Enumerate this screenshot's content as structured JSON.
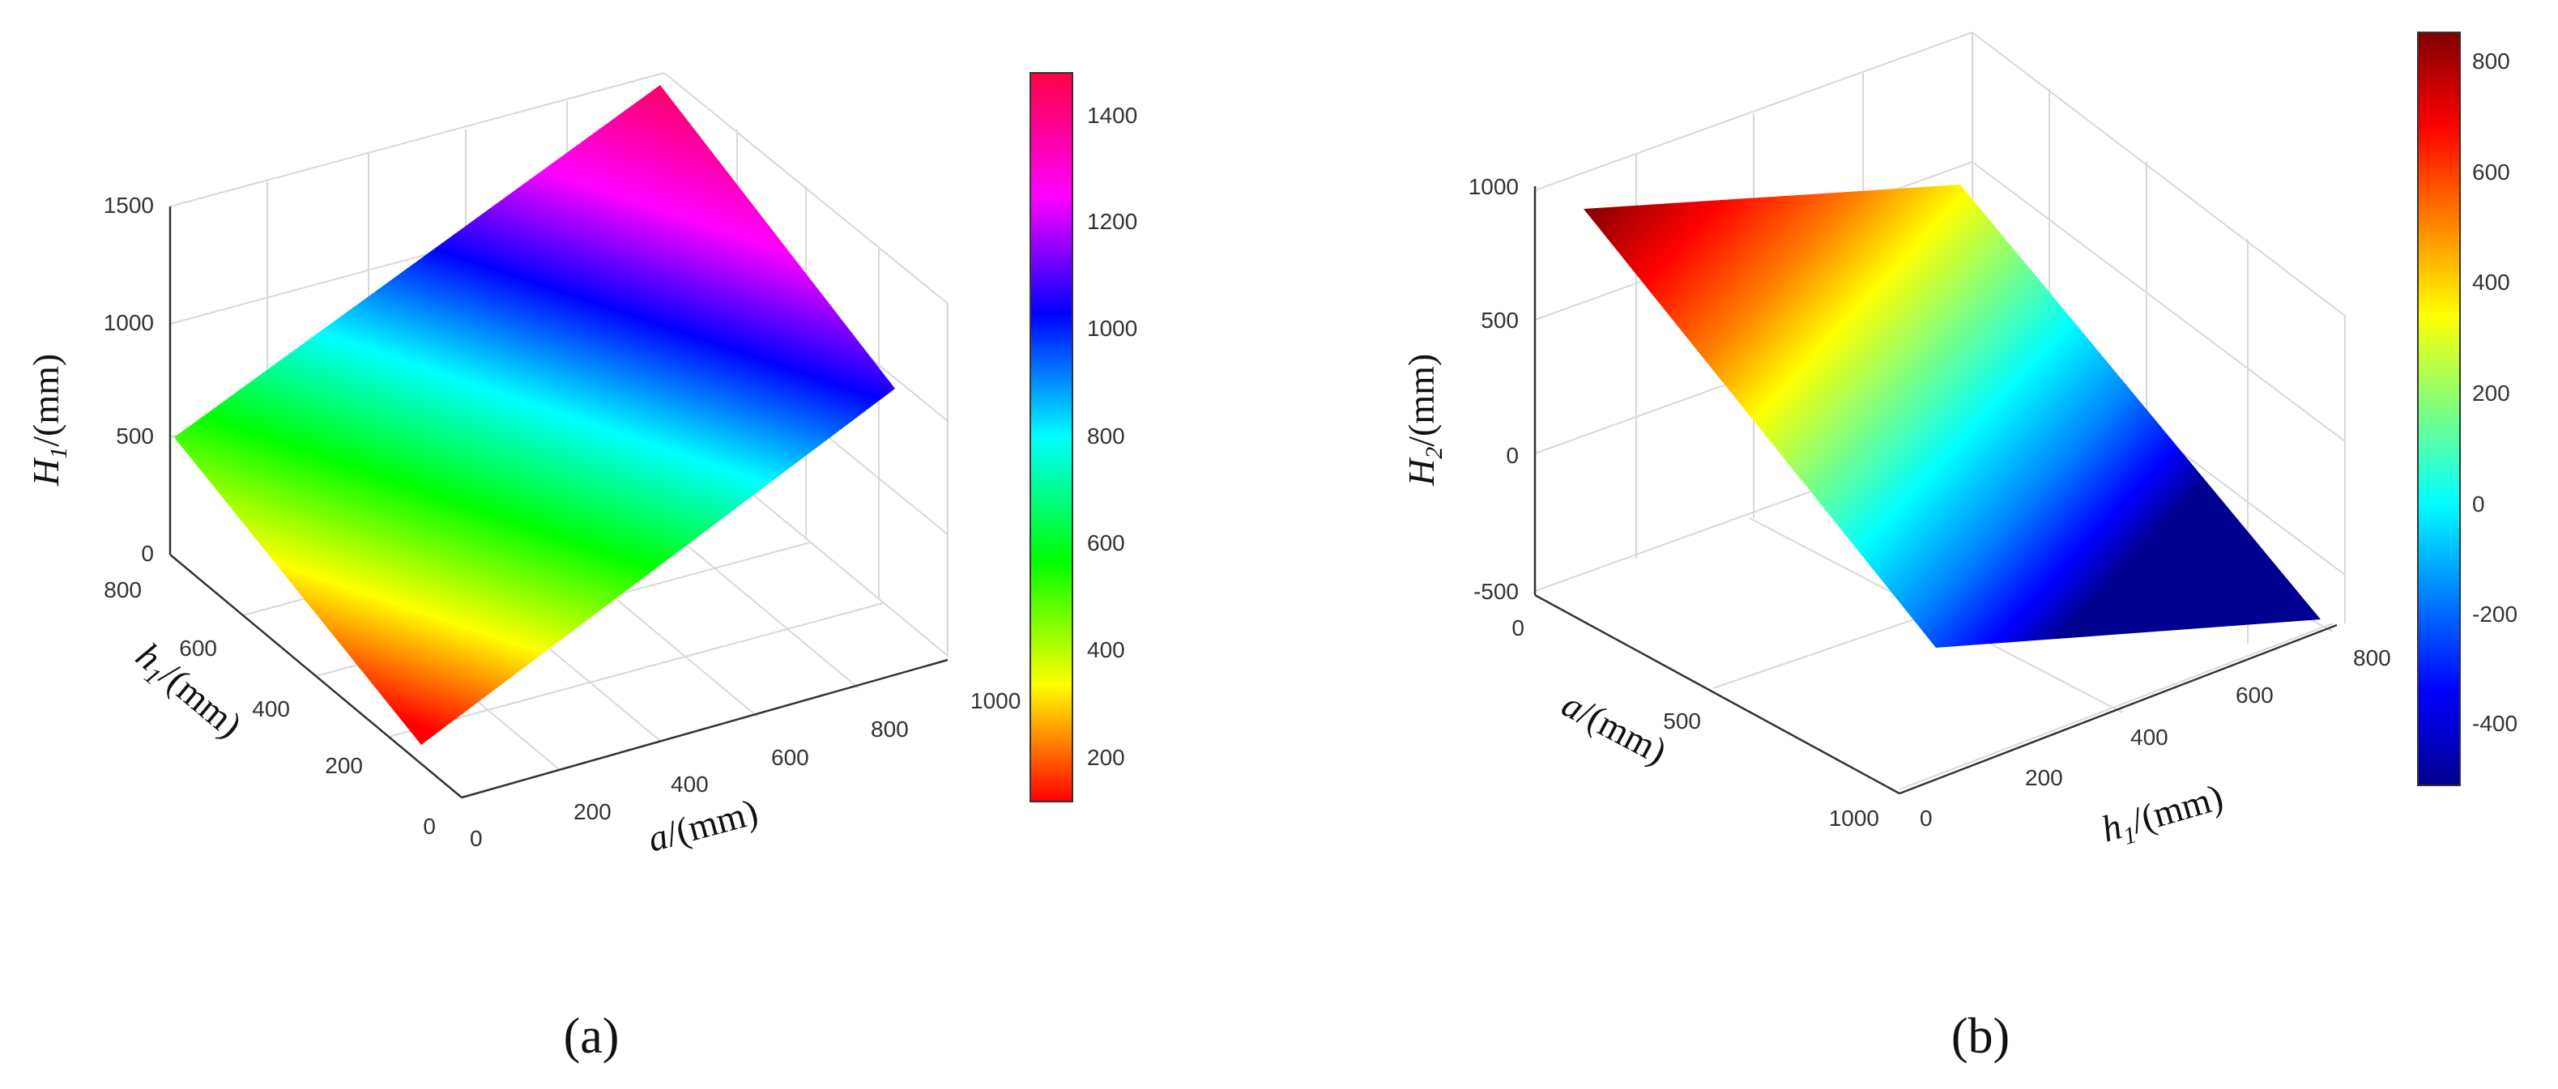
{
  "chart_data": [
    {
      "type": "surface",
      "panel_label": "(a)",
      "zlabel_symbol": "H",
      "zlabel_subscript": "1",
      "zlabel_unit": "/(mm)",
      "xlabel_symbol": "a",
      "xlabel_unit": "/(mm)",
      "ylabel_symbol": "h",
      "ylabel_subscript": "1",
      "ylabel_unit": "/(mm)",
      "x_ticks": [
        "0",
        "200",
        "400",
        "600",
        "800",
        "1000"
      ],
      "y_ticks": [
        "0",
        "200",
        "400",
        "600",
        "800"
      ],
      "z_ticks": [
        "0",
        "500",
        "1000",
        "1500"
      ],
      "surface_corners": [
        {
          "x": 0,
          "y": 0,
          "z": 100
        },
        {
          "x": 1000,
          "y": 0,
          "z": 1100
        },
        {
          "x": 1000,
          "y": 800,
          "z": 1500
        },
        {
          "x": 0,
          "y": 800,
          "z": 500
        }
      ],
      "colorbar_ticks": [
        "200",
        "400",
        "600",
        "800",
        "1000",
        "1200",
        "1400"
      ],
      "colorbar_range": [
        100,
        1500
      ],
      "colormap": "hsv"
    },
    {
      "type": "surface",
      "panel_label": "(b)",
      "zlabel_symbol": "H",
      "zlabel_subscript": "2",
      "zlabel_unit": "/(mm)",
      "xlabel_symbol": "a",
      "xlabel_unit": "/(mm)",
      "ylabel_symbol": "h",
      "ylabel_subscript": "1",
      "ylabel_unit": "/(mm)",
      "x_ticks": [
        "0",
        "500",
        "1000"
      ],
      "y_ticks": [
        "0",
        "200",
        "400",
        "600",
        "800"
      ],
      "z_ticks": [
        "-500",
        "0",
        "500",
        "1000"
      ],
      "surface_corners": [
        {
          "x": 0,
          "y": 0,
          "z": 850
        },
        {
          "x": 0,
          "y": 800,
          "z": 100
        },
        {
          "x": 1000,
          "y": 800,
          "z": -500
        },
        {
          "x": 1000,
          "y": 0,
          "z": -100
        }
      ],
      "colorbar_ticks": [
        "-400",
        "-200",
        "0",
        "200",
        "400",
        "600",
        "800"
      ],
      "colorbar_range": [
        -520,
        850
      ],
      "colormap": "jet"
    }
  ]
}
